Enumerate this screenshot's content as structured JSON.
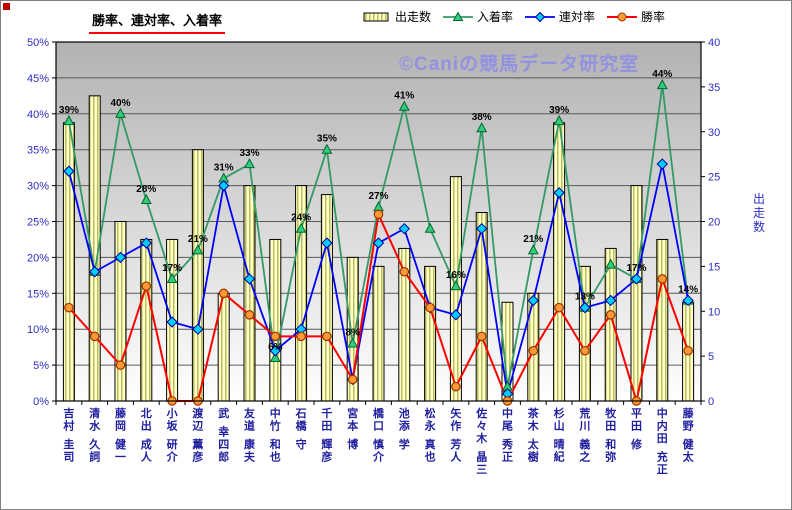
{
  "title": {
    "text": "勝率、連対率、入着率"
  },
  "watermark": "©Caniの競馬データ研究室",
  "legend": [
    {
      "label": "出走数",
      "type": "bar"
    },
    {
      "label": "入着率",
      "type": "triangle-line"
    },
    {
      "label": "連対率",
      "type": "diamond-line"
    },
    {
      "label": "勝率",
      "type": "circle-line"
    }
  ],
  "colors": {
    "bar_fill": "#ffffcf",
    "bar_stripe": "#bdbd55",
    "place_line": "#339966",
    "place_marker": "#33cc7a",
    "place_edge": "#006633",
    "quinella_line": "#0000ff",
    "quinella_marker": "#00ccff",
    "quinella_edge": "#000099",
    "win_line": "#ff0000",
    "win_marker": "#ff9933",
    "win_edge": "#993300",
    "grid": "#595959",
    "axis_text": "#2e2ec4",
    "category_text": "#1f1f9e",
    "watermark": "#8c8ce8",
    "title_underline": "#ff0000",
    "plot_bg_top": "#b2b2b2",
    "plot_bg_bottom": "#ffffff"
  },
  "chart_data": {
    "type": "combo-bar-line",
    "title": "勝率、連対率、入着率",
    "legend_position": "top",
    "grid": true,
    "categories": [
      "吉村 圭司",
      "清水 久詞",
      "藤岡 健一",
      "北出 成人",
      "小坂 研介",
      "渡辺 薫彦",
      "武 幸四郎",
      "友道 康夫",
      "中竹 和也",
      "石橋 守",
      "千田 輝彦",
      "宮本 博",
      "橋口 慎介",
      "池添 学",
      "松永 真也",
      "矢作 芳人",
      "佐々木 晶三",
      "中尾 秀正",
      "茶木 太樹",
      "杉山 晴紀",
      "荒川 義之",
      "牧田 和弥",
      "平田 修",
      "中内田 充正",
      "藤野 健太"
    ],
    "series": [
      {
        "name": "出走数",
        "type": "bar",
        "axis": "right",
        "values": [
          31,
          34,
          20,
          18,
          18,
          28,
          12,
          24,
          18,
          24,
          23,
          16,
          15,
          17,
          15,
          25,
          21,
          11,
          12,
          31,
          15,
          17,
          24,
          18,
          11
        ]
      },
      {
        "name": "入着率",
        "type": "line",
        "marker": "triangle",
        "axis": "left",
        "values": [
          39,
          18,
          40,
          28,
          17,
          21,
          31,
          33,
          6,
          24,
          35,
          8,
          27,
          41,
          24,
          16,
          38,
          2,
          21,
          39,
          13,
          19,
          17,
          44,
          14
        ],
        "labels": [
          "39%",
          "",
          "40%",
          "28%",
          "17%",
          "21%",
          "31%",
          "33%",
          "6%",
          "24%",
          "35%",
          "8%",
          "27%",
          "41%",
          "",
          "16%",
          "38%",
          "",
          "21%",
          "39%",
          "13%",
          "",
          "17%",
          "44%",
          "14%"
        ]
      },
      {
        "name": "連対率",
        "type": "line",
        "marker": "diamond",
        "axis": "left",
        "values": [
          32,
          18,
          20,
          22,
          11,
          10,
          30,
          17,
          7,
          10,
          22,
          3,
          22,
          24,
          13,
          12,
          24,
          1,
          14,
          29,
          13,
          14,
          17,
          33,
          14
        ]
      },
      {
        "name": "勝率",
        "type": "line",
        "marker": "circle",
        "axis": "left",
        "values": [
          13,
          9,
          5,
          16,
          0,
          0,
          15,
          12,
          9,
          9,
          9,
          3,
          26,
          18,
          13,
          2,
          9,
          0,
          7,
          13,
          7,
          12,
          0,
          17,
          7
        ]
      }
    ],
    "left_axis": {
      "min": 0,
      "max": 50,
      "step": 5,
      "unit": "%"
    },
    "right_axis": {
      "min": 0,
      "max": 40,
      "step": 5,
      "title": "出走数"
    }
  }
}
